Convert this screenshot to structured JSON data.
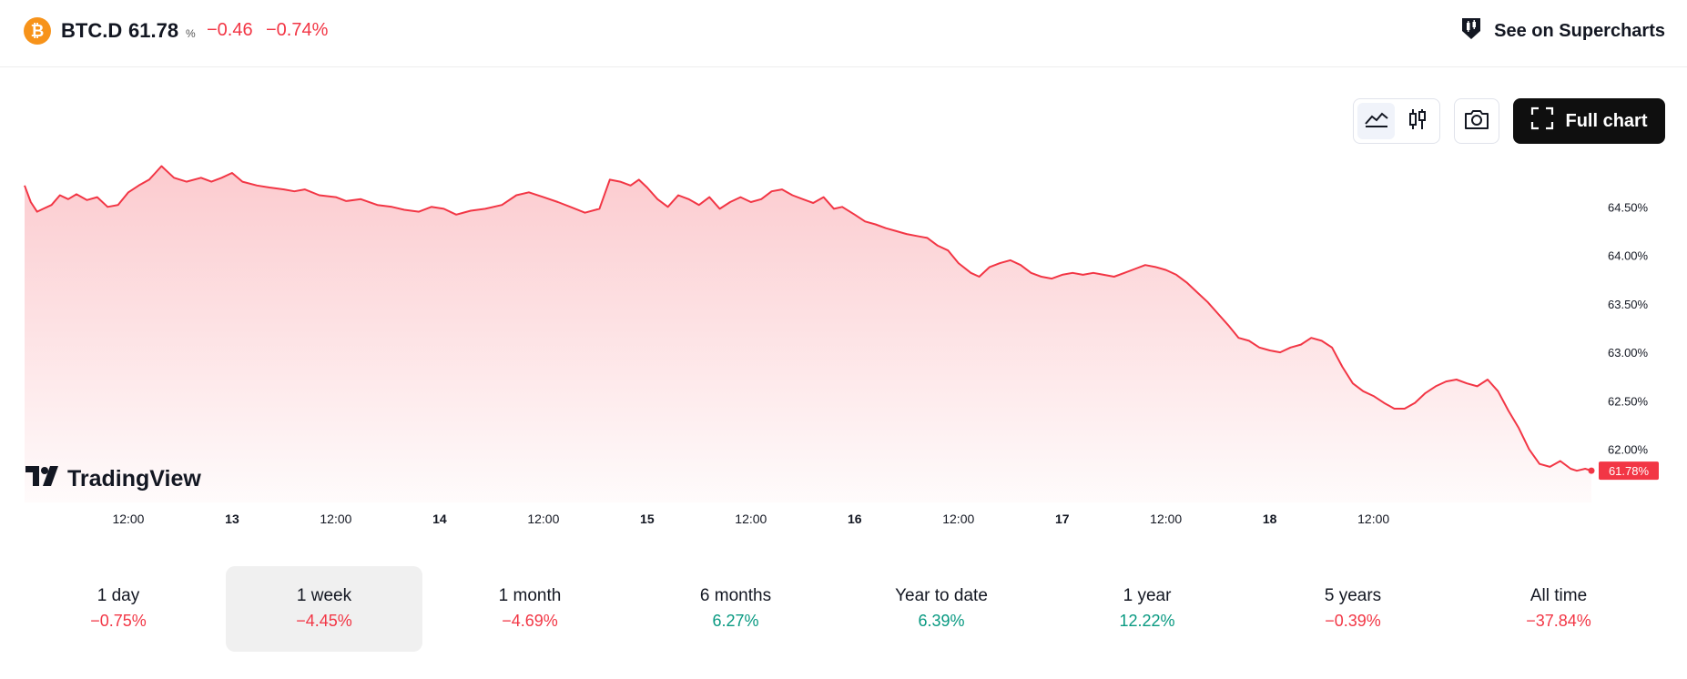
{
  "symbol": {
    "icon": "bitcoin-icon",
    "icon_glyph": "₿",
    "name": "BTC.D",
    "price": "61.78",
    "unit": "%",
    "change": "−0.46",
    "change_percent": "−0.74%"
  },
  "header": {
    "supercharts_label": "See on Supercharts",
    "supercharts_icon": "supercharts-icon"
  },
  "toolbar": {
    "line_icon": "area-chart-icon",
    "candles_icon": "candlestick-icon",
    "camera_icon": "camera-icon",
    "full_chart_label": "Full chart",
    "full_chart_icon": "fullscreen-icon"
  },
  "branding": {
    "logo_text": "TradingView"
  },
  "colors": {
    "line": "#f23645",
    "negative": "#f23645",
    "positive": "#089981",
    "bitcoin": "#f7931a"
  },
  "chart_data": {
    "type": "area",
    "title": "",
    "xlabel": "",
    "ylabel": "",
    "x_ticks": [
      {
        "label": "12:00",
        "t": 0.5,
        "bold": false
      },
      {
        "label": "13",
        "t": 1.0,
        "bold": true
      },
      {
        "label": "12:00",
        "t": 1.5,
        "bold": false
      },
      {
        "label": "14",
        "t": 2.0,
        "bold": true
      },
      {
        "label": "12:00",
        "t": 2.5,
        "bold": false
      },
      {
        "label": "15",
        "t": 3.0,
        "bold": true
      },
      {
        "label": "12:00",
        "t": 3.5,
        "bold": false
      },
      {
        "label": "16",
        "t": 4.0,
        "bold": true
      },
      {
        "label": "12:00",
        "t": 4.5,
        "bold": false
      },
      {
        "label": "17",
        "t": 5.0,
        "bold": true
      },
      {
        "label": "12:00",
        "t": 5.5,
        "bold": false
      },
      {
        "label": "18",
        "t": 6.0,
        "bold": true
      },
      {
        "label": "12:00",
        "t": 6.5,
        "bold": false
      }
    ],
    "y_ticks": [
      {
        "label": "64.50%",
        "v": 64.5
      },
      {
        "label": "64.00%",
        "v": 64.0
      },
      {
        "label": "63.50%",
        "v": 63.5
      },
      {
        "label": "63.00%",
        "v": 63.0
      },
      {
        "label": "62.50%",
        "v": 62.5
      },
      {
        "label": "62.00%",
        "v": 62.0
      }
    ],
    "last_value_label": "61.78%",
    "last_value": 61.78,
    "series": [
      {
        "points": [
          [
            0.0,
            64.72
          ],
          [
            0.03,
            64.55
          ],
          [
            0.06,
            64.45
          ],
          [
            0.09,
            64.48
          ],
          [
            0.13,
            64.52
          ],
          [
            0.17,
            64.62
          ],
          [
            0.21,
            64.58
          ],
          [
            0.25,
            64.63
          ],
          [
            0.3,
            64.57
          ],
          [
            0.35,
            64.6
          ],
          [
            0.4,
            64.5
          ],
          [
            0.45,
            64.52
          ],
          [
            0.5,
            64.65
          ],
          [
            0.55,
            64.72
          ],
          [
            0.6,
            64.78
          ],
          [
            0.63,
            64.85
          ],
          [
            0.66,
            64.92
          ],
          [
            0.68,
            64.88
          ],
          [
            0.72,
            64.8
          ],
          [
            0.78,
            64.76
          ],
          [
            0.85,
            64.8
          ],
          [
            0.9,
            64.76
          ],
          [
            0.95,
            64.8
          ],
          [
            1.0,
            64.85
          ],
          [
            1.05,
            64.76
          ],
          [
            1.12,
            64.72
          ],
          [
            1.18,
            64.7
          ],
          [
            1.25,
            64.68
          ],
          [
            1.3,
            64.66
          ],
          [
            1.35,
            64.68
          ],
          [
            1.42,
            64.62
          ],
          [
            1.5,
            64.6
          ],
          [
            1.55,
            64.56
          ],
          [
            1.62,
            64.58
          ],
          [
            1.7,
            64.52
          ],
          [
            1.77,
            64.5
          ],
          [
            1.83,
            64.47
          ],
          [
            1.9,
            64.45
          ],
          [
            1.96,
            64.5
          ],
          [
            2.02,
            64.48
          ],
          [
            2.08,
            64.42
          ],
          [
            2.15,
            64.46
          ],
          [
            2.22,
            64.48
          ],
          [
            2.3,
            64.52
          ],
          [
            2.37,
            64.62
          ],
          [
            2.43,
            64.65
          ],
          [
            2.5,
            64.6
          ],
          [
            2.57,
            64.55
          ],
          [
            2.63,
            64.5
          ],
          [
            2.7,
            64.44
          ],
          [
            2.77,
            64.48
          ],
          [
            2.82,
            64.78
          ],
          [
            2.87,
            64.76
          ],
          [
            2.92,
            64.72
          ],
          [
            2.96,
            64.78
          ],
          [
            3.0,
            64.7
          ],
          [
            3.05,
            64.58
          ],
          [
            3.1,
            64.5
          ],
          [
            3.15,
            64.62
          ],
          [
            3.2,
            64.58
          ],
          [
            3.25,
            64.52
          ],
          [
            3.3,
            64.6
          ],
          [
            3.35,
            64.48
          ],
          [
            3.4,
            64.55
          ],
          [
            3.45,
            64.6
          ],
          [
            3.5,
            64.55
          ],
          [
            3.55,
            64.58
          ],
          [
            3.6,
            64.66
          ],
          [
            3.65,
            64.68
          ],
          [
            3.7,
            64.62
          ],
          [
            3.75,
            64.58
          ],
          [
            3.8,
            64.54
          ],
          [
            3.85,
            64.6
          ],
          [
            3.9,
            64.48
          ],
          [
            3.94,
            64.5
          ],
          [
            4.0,
            64.42
          ],
          [
            4.05,
            64.35
          ],
          [
            4.1,
            64.32
          ],
          [
            4.15,
            64.28
          ],
          [
            4.2,
            64.25
          ],
          [
            4.25,
            64.22
          ],
          [
            4.3,
            64.2
          ],
          [
            4.35,
            64.18
          ],
          [
            4.4,
            64.1
          ],
          [
            4.45,
            64.05
          ],
          [
            4.5,
            63.92
          ],
          [
            4.56,
            63.82
          ],
          [
            4.6,
            63.78
          ],
          [
            4.65,
            63.88
          ],
          [
            4.7,
            63.92
          ],
          [
            4.75,
            63.95
          ],
          [
            4.8,
            63.9
          ],
          [
            4.85,
            63.82
          ],
          [
            4.9,
            63.78
          ],
          [
            4.95,
            63.76
          ],
          [
            5.0,
            63.8
          ],
          [
            5.05,
            63.82
          ],
          [
            5.1,
            63.8
          ],
          [
            5.15,
            63.82
          ],
          [
            5.2,
            63.8
          ],
          [
            5.25,
            63.78
          ],
          [
            5.3,
            63.82
          ],
          [
            5.35,
            63.86
          ],
          [
            5.4,
            63.9
          ],
          [
            5.45,
            63.88
          ],
          [
            5.5,
            63.85
          ],
          [
            5.55,
            63.8
          ],
          [
            5.6,
            63.72
          ],
          [
            5.65,
            63.62
          ],
          [
            5.7,
            63.52
          ],
          [
            5.75,
            63.4
          ],
          [
            5.8,
            63.28
          ],
          [
            5.85,
            63.15
          ],
          [
            5.9,
            63.12
          ],
          [
            5.95,
            63.05
          ],
          [
            6.0,
            63.02
          ],
          [
            6.05,
            63.0
          ],
          [
            6.1,
            63.05
          ],
          [
            6.15,
            63.08
          ],
          [
            6.2,
            63.15
          ],
          [
            6.25,
            63.12
          ],
          [
            6.3,
            63.05
          ],
          [
            6.35,
            62.85
          ],
          [
            6.4,
            62.68
          ],
          [
            6.45,
            62.6
          ],
          [
            6.5,
            62.55
          ],
          [
            6.55,
            62.48
          ],
          [
            6.6,
            62.42
          ],
          [
            6.65,
            62.42
          ],
          [
            6.7,
            62.48
          ],
          [
            6.75,
            62.58
          ],
          [
            6.8,
            62.65
          ],
          [
            6.85,
            62.7
          ],
          [
            6.9,
            62.72
          ],
          [
            6.95,
            62.68
          ],
          [
            7.0,
            62.65
          ],
          [
            7.05,
            62.72
          ],
          [
            7.1,
            62.6
          ],
          [
            7.15,
            62.4
          ],
          [
            7.2,
            62.22
          ],
          [
            7.25,
            62.0
          ],
          [
            7.3,
            61.85
          ],
          [
            7.35,
            61.82
          ],
          [
            7.4,
            61.88
          ],
          [
            7.45,
            61.8
          ],
          [
            7.48,
            61.78
          ],
          [
            7.52,
            61.8
          ],
          [
            7.55,
            61.78
          ]
        ]
      }
    ],
    "grid": false,
    "legend": "none"
  },
  "periods": [
    {
      "label": "1 day",
      "value": "−0.75%",
      "sign": "neg",
      "selected": false
    },
    {
      "label": "1 week",
      "value": "−4.45%",
      "sign": "neg",
      "selected": true
    },
    {
      "label": "1 month",
      "value": "−4.69%",
      "sign": "neg",
      "selected": false
    },
    {
      "label": "6 months",
      "value": "6.27%",
      "sign": "pos",
      "selected": false
    },
    {
      "label": "Year to date",
      "value": "6.39%",
      "sign": "pos",
      "selected": false
    },
    {
      "label": "1 year",
      "value": "12.22%",
      "sign": "pos",
      "selected": false
    },
    {
      "label": "5 years",
      "value": "−0.39%",
      "sign": "neg",
      "selected": false
    },
    {
      "label": "All time",
      "value": "−37.84%",
      "sign": "neg",
      "selected": false
    }
  ]
}
